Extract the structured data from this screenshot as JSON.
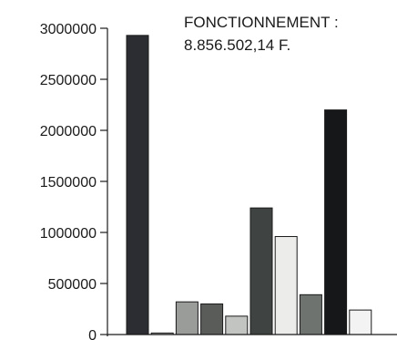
{
  "chart_data": {
    "type": "bar",
    "title": "FONCTIONNEMENT :",
    "subtitle": "8.856.502,14 F.",
    "xlabel": "",
    "ylabel": "",
    "ylim": [
      0,
      3000000
    ],
    "yticks": [
      0,
      500000,
      1000000,
      1500000,
      2000000,
      2500000,
      3000000
    ],
    "ytick_labels": [
      "0",
      "500000",
      "1000000",
      "1500000",
      "2000000",
      "2500000",
      "3000000"
    ],
    "grid": false,
    "legend": "none",
    "values": [
      2930000,
      15000,
      320000,
      300000,
      180000,
      1240000,
      960000,
      390000,
      2200000,
      240000
    ],
    "colors": [
      "#2b2d33",
      "#a9aba9",
      "#9a9c9a",
      "#5a5c5a",
      "#c2c4c2",
      "#3f4442",
      "#ecedeb",
      "#6e7370",
      "#161719",
      "#f3f3f3"
    ]
  }
}
